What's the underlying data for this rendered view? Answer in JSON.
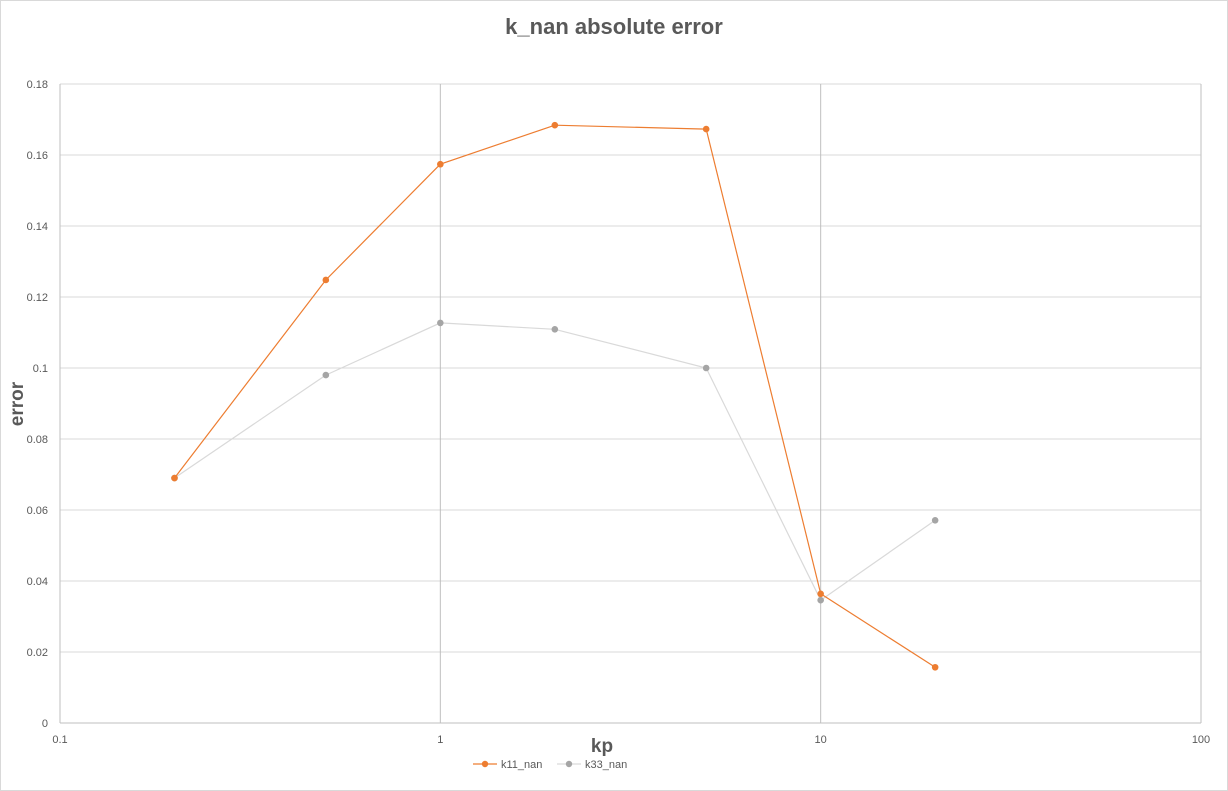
{
  "chart_data": {
    "type": "scatter",
    "title": "k_nan absolute error",
    "xlabel": "kp",
    "ylabel": "error",
    "xscale": "log",
    "xlim": [
      0.1,
      100
    ],
    "ylim": [
      0,
      0.18
    ],
    "x_ticks": [
      "0.1",
      "1",
      "10",
      "100"
    ],
    "y_ticks": [
      "0",
      "0.02",
      "0.04",
      "0.06",
      "0.08",
      "0.1",
      "0.12",
      "0.14",
      "0.16",
      "0.18"
    ],
    "grid": true,
    "legend_position": "bottom",
    "series": [
      {
        "name": "k11_nan",
        "color": "#ed7d31",
        "x": [
          0.2,
          0.5,
          1,
          2,
          5,
          10,
          20
        ],
        "y": [
          0.069,
          0.1248,
          0.1574,
          0.1684,
          0.1673,
          0.0364,
          0.0157
        ]
      },
      {
        "name": "k33_nan",
        "color": "#a5a5a5",
        "x": [
          0.2,
          0.5,
          1,
          2,
          5,
          10,
          20
        ],
        "y": [
          0.069,
          0.098,
          0.1127,
          0.1109,
          0.1,
          0.0346,
          0.0571
        ]
      }
    ]
  }
}
